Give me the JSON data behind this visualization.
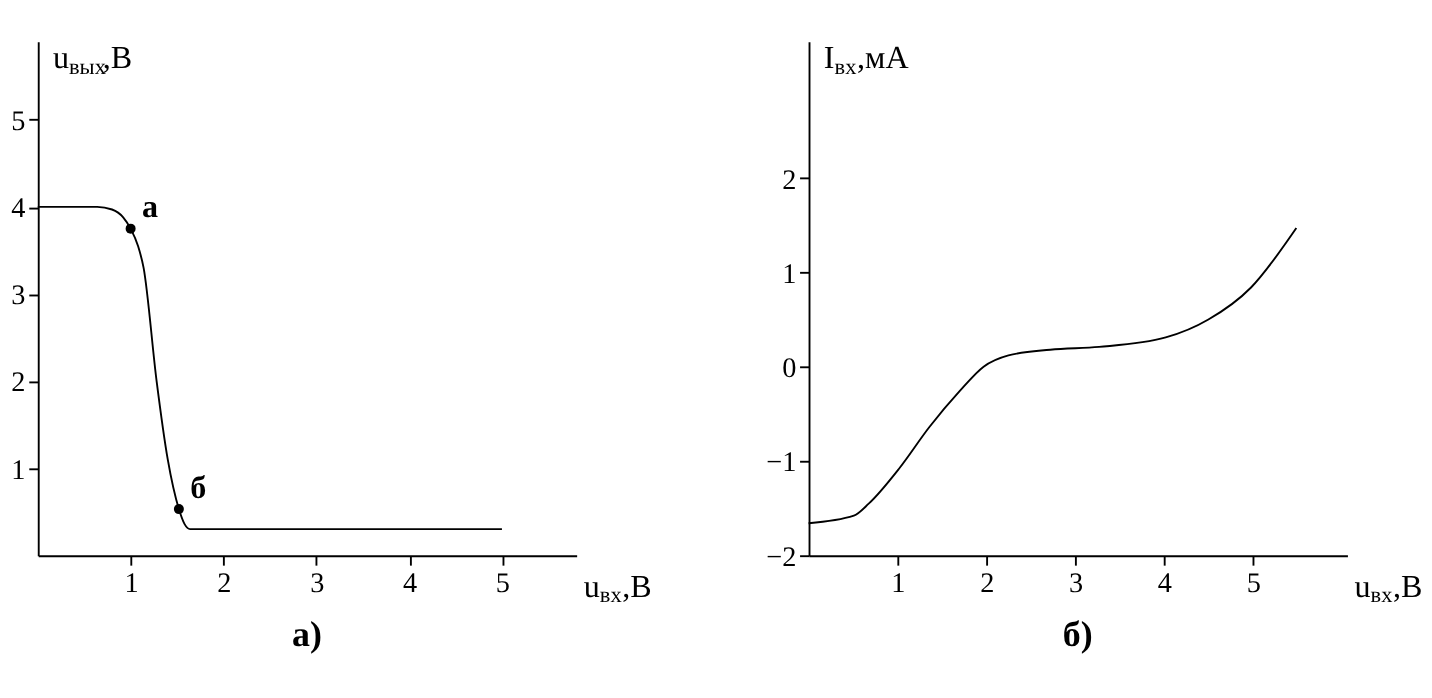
{
  "chart_data": [
    {
      "type": "line",
      "title": "а)",
      "xlabel": "u$_{вх}$,В",
      "ylabel": "u$_{вых}$,В",
      "xlim": [
        0,
        5.8
      ],
      "ylim": [
        0,
        5.9
      ],
      "xticks": [
        1,
        2,
        3,
        4,
        5
      ],
      "yticks": [
        1,
        2,
        3,
        4,
        5
      ],
      "grid": false,
      "series": [
        {
          "color": "#000000",
          "marker": "none",
          "line_style": "solid",
          "x": [
            0,
            0.64,
            0.8,
            0.92,
            1.0,
            1.08,
            1.14,
            1.28,
            1.4,
            1.52,
            1.58,
            1.64,
            2,
            3,
            4,
            5
          ],
          "values": [
            4,
            4,
            3.97,
            3.88,
            3.75,
            3.55,
            3.3,
            2.0,
            1.1,
            0.53,
            0.36,
            0.3,
            0.3,
            0.3,
            0.3,
            0.3
          ]
        },
        {
          "type": "scatter",
          "color": "#000000",
          "marker": "circle",
          "x": [
            1,
            1.52
          ],
          "values": [
            3.75,
            0.53
          ]
        }
      ],
      "annotations": [
        {
          "text": "а",
          "x": 1,
          "y": 3.75
        },
        {
          "text": "б",
          "x": 1.52,
          "y": 0.53
        }
      ]
    },
    {
      "type": "line",
      "title": "б)",
      "xlabel": "u$_{вх}$,В",
      "ylabel": "I$_{вх}$,мА",
      "xlim": [
        0,
        6.06
      ],
      "ylim": [
        -2,
        3.45
      ],
      "xticks": [
        1,
        2,
        3,
        4,
        5
      ],
      "yticks": [
        -2,
        -1,
        0,
        1,
        2
      ],
      "grid": false,
      "series": [
        {
          "color": "#000000",
          "marker": "none",
          "line_style": "solid",
          "x": [
            0,
            0.51,
            0.68,
            1.02,
            1.36,
            1.7,
            1.97,
            2.25,
            2.72,
            3.27,
            4.02,
            4.5,
            4.98,
            5.49
          ],
          "values": [
            -1.66,
            -1.58,
            -1.45,
            -1.08,
            -0.64,
            -0.26,
            0,
            0.12,
            0.18,
            0.21,
            0.31,
            0.5,
            0.84,
            1.47
          ]
        }
      ]
    }
  ]
}
